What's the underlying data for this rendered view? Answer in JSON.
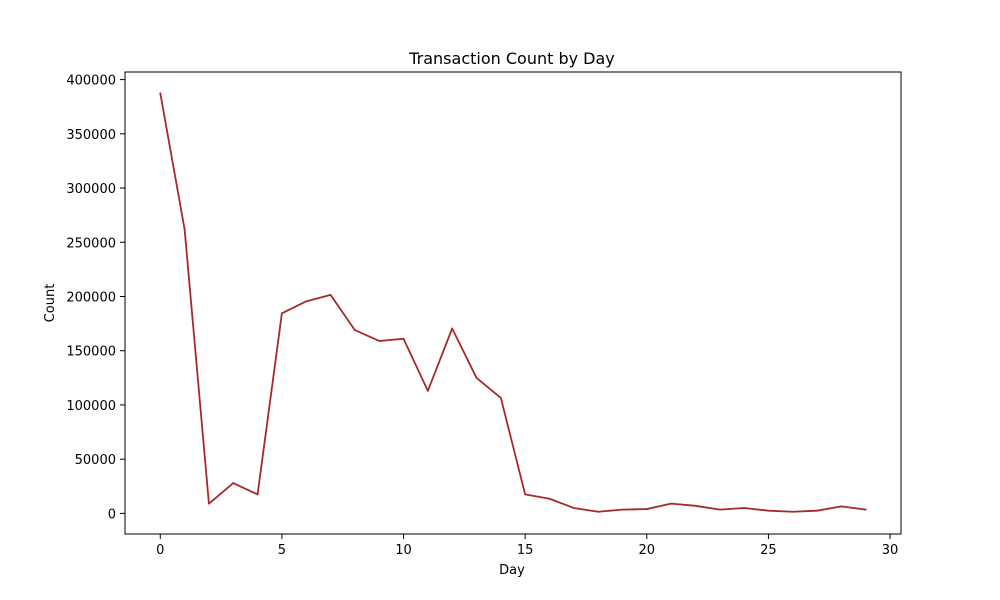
{
  "chart_data": {
    "type": "line",
    "title": "Transaction Count by Day",
    "xlabel": "Day",
    "ylabel": "Count",
    "xlim": [
      -1.45,
      30.45
    ],
    "ylim": [
      -19000,
      407000
    ],
    "xticks": [
      0,
      5,
      10,
      15,
      20,
      25,
      30
    ],
    "yticks": [
      0,
      50000,
      100000,
      150000,
      200000,
      250000,
      300000,
      350000,
      400000
    ],
    "grid": false,
    "line_color": "#a52a2a",
    "series": [
      {
        "x": [
          0,
          1,
          2,
          3,
          4,
          5,
          6,
          7,
          8,
          9,
          10,
          11,
          12,
          13,
          14,
          15,
          16,
          17,
          18,
          19,
          20,
          21,
          22,
          23,
          24,
          25,
          26,
          27,
          28,
          29
        ],
        "values": [
          387500,
          262000,
          9000,
          28000,
          17500,
          184500,
          195500,
          201500,
          169000,
          159000,
          161000,
          113000,
          170500,
          125000,
          106500,
          17500,
          13500,
          5000,
          1500,
          3500,
          4000,
          9000,
          7000,
          3500,
          5000,
          2500,
          1500,
          2500,
          6500,
          3500
        ]
      }
    ]
  }
}
